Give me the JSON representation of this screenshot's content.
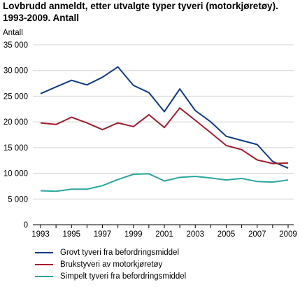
{
  "title_line1": "Lovbrudd anmeldt, etter utvalgte typer tyveri (motorkjøretøy).",
  "title_line2": "1993-2009. Antall",
  "chart_data": {
    "type": "line",
    "ylabel": "Antall",
    "xlabel": "",
    "ylim": [
      0,
      35000
    ],
    "yticks": [
      "0",
      "5 000",
      "10 000",
      "15 000",
      "20 000",
      "25 000",
      "30 000",
      "35 000"
    ],
    "ytick_values": [
      0,
      5000,
      10000,
      15000,
      20000,
      25000,
      30000,
      35000
    ],
    "x": [
      1993,
      1994,
      1995,
      1996,
      1997,
      1998,
      1999,
      2000,
      2001,
      2002,
      2003,
      2004,
      2005,
      2006,
      2007,
      2008,
      2009
    ],
    "xtick_labels": [
      "1993",
      "1995",
      "1997",
      "1999",
      "2001",
      "2003",
      "2005",
      "2007",
      "2009"
    ],
    "xtick_values": [
      1993,
      1995,
      1997,
      1999,
      2001,
      2003,
      2005,
      2007,
      2009
    ],
    "grid": true,
    "legend_position": "bottom",
    "series": [
      {
        "name": "Grovt tyveri fra befordringsmiddel",
        "color": "#0f3a87",
        "values": [
          25500,
          26800,
          28100,
          27200,
          28700,
          30700,
          27100,
          25700,
          22000,
          26400,
          22200,
          20000,
          17200,
          16400,
          15600,
          12300,
          11000
        ]
      },
      {
        "name": "Brukstyveri av motorkjøretøy",
        "color": "#a51c30",
        "values": [
          19800,
          19500,
          20900,
          19800,
          18500,
          19800,
          19100,
          21400,
          18900,
          22700,
          20300,
          17900,
          15400,
          14600,
          12600,
          11900,
          12000
        ]
      },
      {
        "name": "Simpelt tyveri fra befordringsmiddel",
        "color": "#2aa6a0",
        "values": [
          6600,
          6500,
          6900,
          6900,
          7600,
          8800,
          9800,
          9900,
          8500,
          9200,
          9400,
          9100,
          8700,
          9000,
          8400,
          8300,
          8700
        ]
      }
    ]
  }
}
